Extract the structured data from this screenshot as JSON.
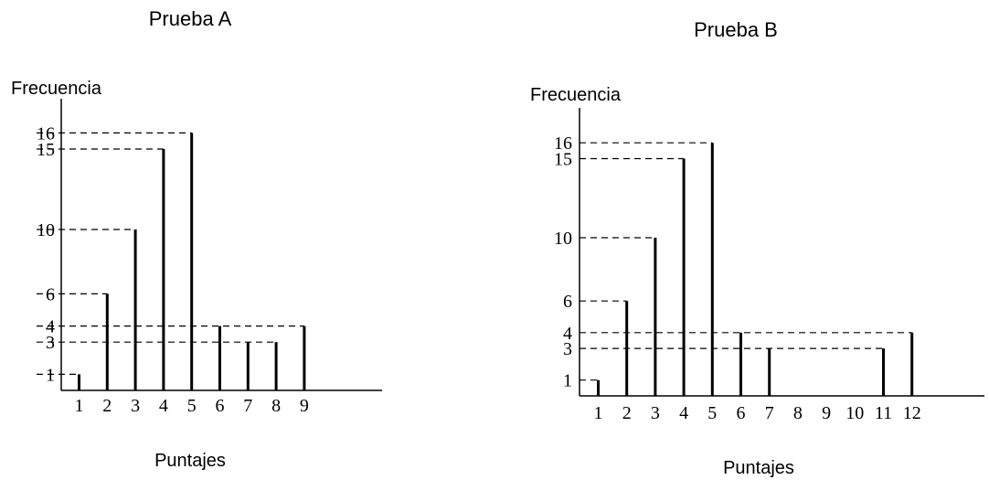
{
  "chart_data": [
    {
      "type": "bar",
      "title": "Prueba A",
      "ylabel": "Frecuencia",
      "xlabel": "Puntajes",
      "x": [
        1,
        2,
        3,
        4,
        5,
        6,
        7,
        8,
        9
      ],
      "x_tick_labels": [
        "1",
        "2",
        "3",
        "4",
        "5",
        "6",
        "7",
        "8",
        "9"
      ],
      "values": [
        1,
        6,
        10,
        15,
        16,
        4,
        3,
        3,
        4
      ],
      "y_tick_labels": [
        "1",
        "3",
        "4",
        "6",
        "10",
        "15",
        "16"
      ],
      "y_ticks": [
        1,
        3,
        4,
        6,
        10,
        15,
        16
      ],
      "ylim": [
        0,
        16
      ],
      "grid": false,
      "dashed_reference_lines": true
    },
    {
      "type": "bar",
      "title": "Prueba  B",
      "ylabel": "Frecuencia",
      "xlabel": "Puntajes",
      "x": [
        1,
        2,
        3,
        4,
        5,
        6,
        7,
        11,
        12
      ],
      "x_tick_positions": [
        1,
        2,
        3,
        4,
        5,
        6,
        7,
        8,
        9,
        10,
        11,
        12
      ],
      "x_tick_labels": [
        "1",
        "2",
        "3",
        "4",
        "5",
        "6",
        "7",
        "8",
        "9",
        "10",
        "11",
        "12"
      ],
      "values": [
        1,
        6,
        10,
        15,
        16,
        4,
        3,
        3,
        4
      ],
      "y_tick_labels": [
        "1",
        "3",
        "4",
        "6",
        "10",
        "15",
        "16"
      ],
      "y_ticks": [
        1,
        3,
        4,
        6,
        10,
        15,
        16
      ],
      "ylim": [
        0,
        16
      ],
      "grid": false,
      "dashed_reference_lines": true
    }
  ]
}
